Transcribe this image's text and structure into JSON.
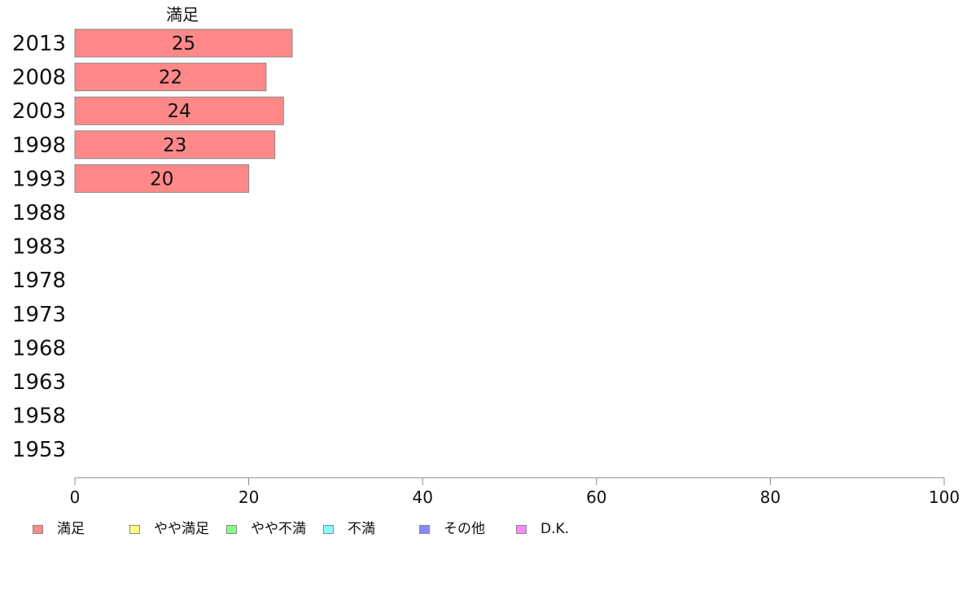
{
  "chart_data": {
    "type": "bar",
    "orientation": "horizontal",
    "stacked": true,
    "categories": [
      "2013",
      "2008",
      "2003",
      "1998",
      "1993",
      "1988",
      "1983",
      "1978",
      "1973",
      "1968",
      "1963",
      "1958",
      "1953"
    ],
    "series": [
      {
        "name": "満足",
        "color": "#ff8888",
        "values": [
          25,
          22,
          24,
          23,
          20,
          null,
          null,
          null,
          null,
          null,
          null,
          null,
          null
        ]
      },
      {
        "name": "やや満足",
        "color": "#ffff88",
        "values": [
          null,
          null,
          null,
          null,
          null,
          null,
          null,
          null,
          null,
          null,
          null,
          null,
          null
        ]
      },
      {
        "name": "やや不満",
        "color": "#88ff88",
        "values": [
          null,
          null,
          null,
          null,
          null,
          null,
          null,
          null,
          null,
          null,
          null,
          null,
          null
        ]
      },
      {
        "name": "不満",
        "color": "#88ffff",
        "values": [
          null,
          null,
          null,
          null,
          null,
          null,
          null,
          null,
          null,
          null,
          null,
          null,
          null
        ]
      },
      {
        "name": "その他",
        "color": "#8888ff",
        "values": [
          null,
          null,
          null,
          null,
          null,
          null,
          null,
          null,
          null,
          null,
          null,
          null,
          null
        ]
      },
      {
        "name": "D.K.",
        "color": "#ff88ff",
        "values": [
          null,
          null,
          null,
          null,
          null,
          null,
          null,
          null,
          null,
          null,
          null,
          null,
          null
        ]
      }
    ],
    "column_header": "満足",
    "xlim": [
      0,
      100
    ],
    "xticks": [
      0,
      20,
      40,
      60,
      80,
      100
    ],
    "xtick_labels": [
      "0",
      "20",
      "40",
      "60",
      "80",
      "100"
    ],
    "grid": false,
    "legend_position": "bottom-left"
  }
}
